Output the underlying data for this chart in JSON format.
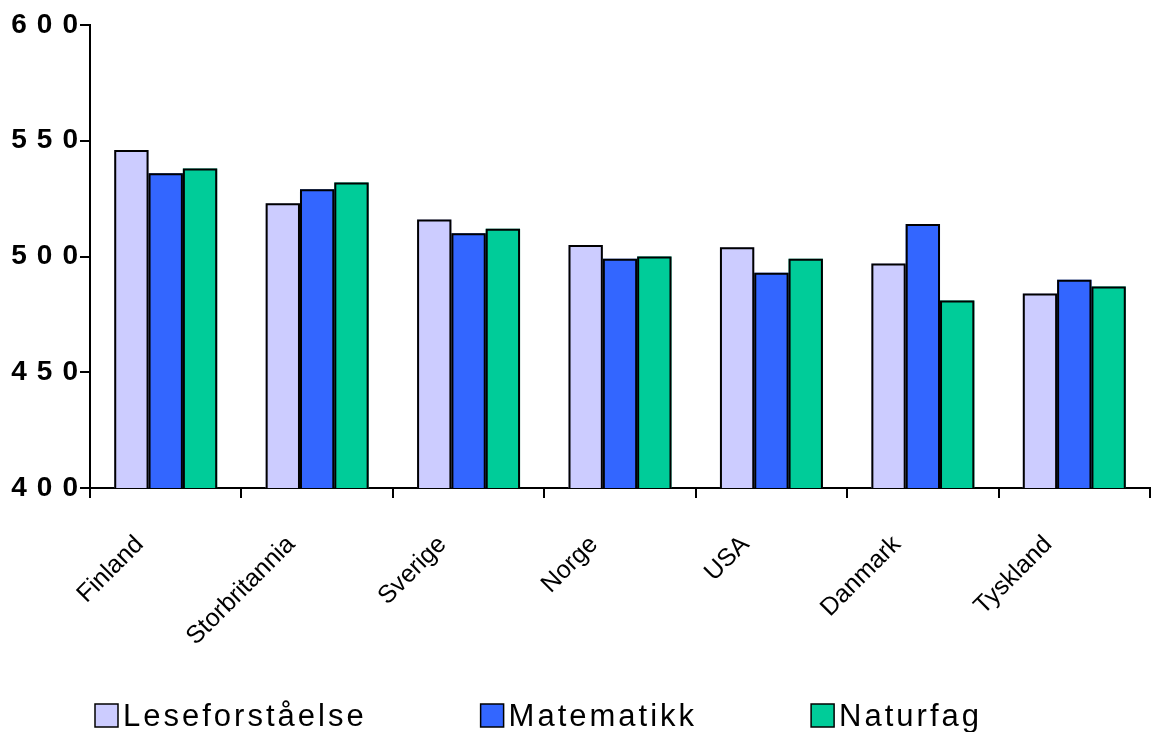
{
  "chart_data": {
    "type": "bar",
    "categories": [
      "Finland",
      "Storbritannia",
      "Sverige",
      "Norge",
      "USA",
      "Danmark",
      "Tyskland"
    ],
    "series": [
      {
        "name": "Leseforståelse",
        "color": "#ccccff",
        "values": [
          546,
          523,
          516,
          505,
          504,
          497,
          484
        ]
      },
      {
        "name": "Matematikk",
        "color": "#3366ff",
        "values": [
          536,
          529,
          510,
          499,
          493,
          514,
          490
        ]
      },
      {
        "name": "Naturfag",
        "color": "#00cc99",
        "values": [
          538,
          532,
          512,
          500,
          499,
          481,
          487
        ]
      }
    ],
    "ylim": [
      400,
      600
    ],
    "yticks": [
      400,
      450,
      500,
      550,
      600
    ],
    "legend": "bottom"
  }
}
